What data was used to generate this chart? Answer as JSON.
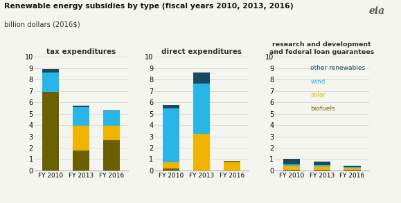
{
  "title": "Renewable energy subsidies by type (fiscal years 2010, 2013, 2016)",
  "subtitle": "billion dollars (2016$)",
  "years": [
    "FY 2010",
    "FY 2013",
    "FY 2016"
  ],
  "panel_titles": [
    "tax expenditures",
    "direct expenditures",
    "research and development\nand federal loan guarantees"
  ],
  "colors": {
    "biofuels": "#6b6000",
    "solar": "#f0b400",
    "wind": "#29b5e8",
    "other": "#1a4a5e"
  },
  "legend_labels": [
    "other renewables",
    "wind",
    "solar",
    "biofuels"
  ],
  "legend_text_colors": [
    "#1a4a5e",
    "#29b5e8",
    "#f0b400",
    "#6b6000"
  ],
  "tax_expenditures": {
    "biofuels": [
      6.9,
      1.75,
      2.65
    ],
    "solar": [
      0.0,
      2.2,
      1.3
    ],
    "wind": [
      1.75,
      1.65,
      1.25
    ],
    "other": [
      0.3,
      0.1,
      0.1
    ]
  },
  "direct_expenditures": {
    "biofuels": [
      0.2,
      0.0,
      0.0
    ],
    "solar": [
      0.55,
      3.2,
      0.8
    ],
    "wind": [
      4.7,
      4.45,
      0.0
    ],
    "other": [
      0.3,
      1.0,
      0.07
    ]
  },
  "rd_guarantees": {
    "biofuels": [
      0.05,
      0.05,
      0.03
    ],
    "solar": [
      0.38,
      0.32,
      0.2
    ],
    "wind": [
      0.12,
      0.1,
      0.06
    ],
    "other": [
      0.5,
      0.32,
      0.12
    ]
  },
  "ylim": [
    0,
    10
  ],
  "yticks": [
    0,
    1,
    2,
    3,
    4,
    5,
    6,
    7,
    8,
    9,
    10
  ],
  "background_color": "#f5f5f0",
  "bar_width": 0.55
}
